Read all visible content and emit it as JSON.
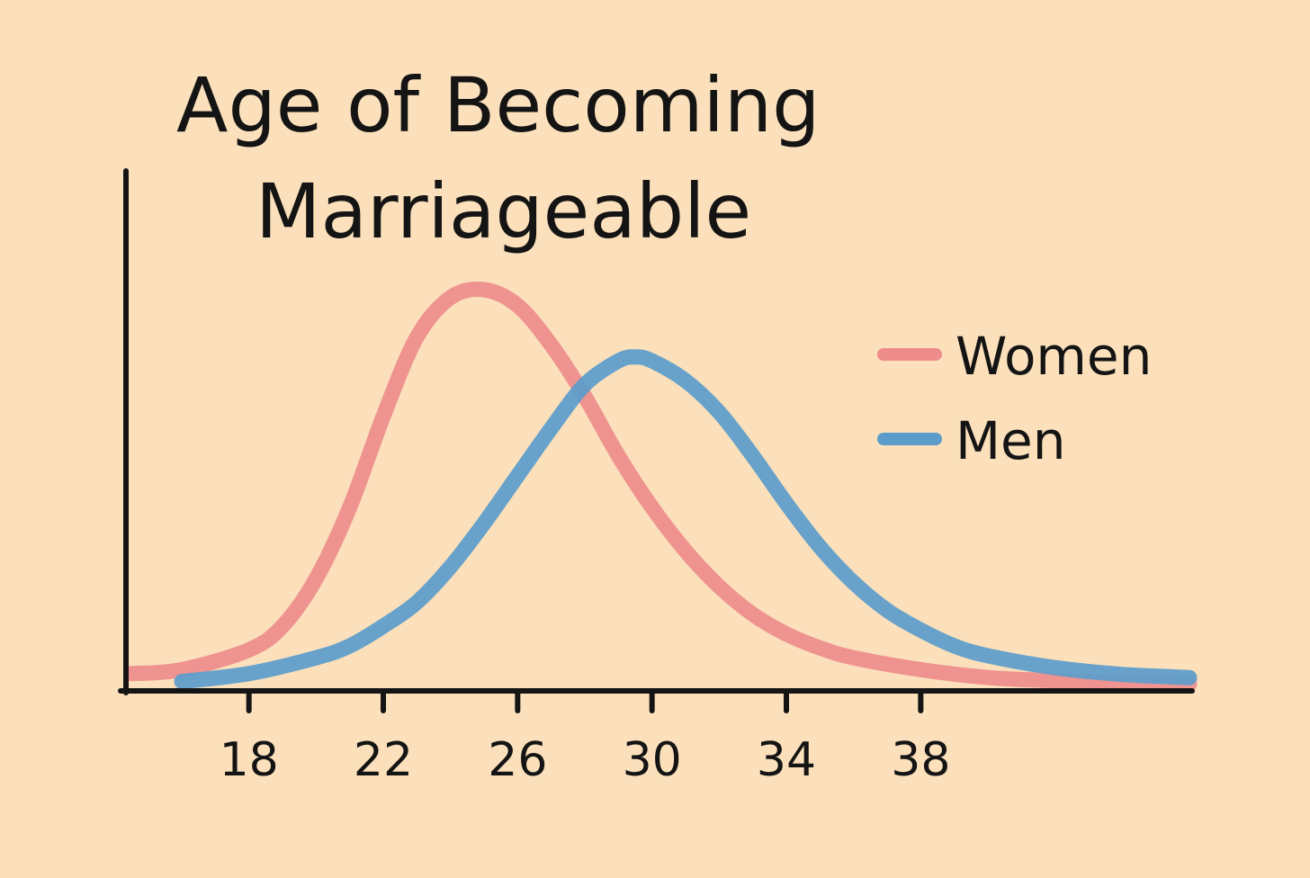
{
  "chart_data": {
    "type": "line",
    "title": [
      "Age of Becoming",
      "Marriageable"
    ],
    "xlabel": "",
    "ylabel": "",
    "xlim": [
      14.5,
      46
    ],
    "ylim": [
      0,
      1.0
    ],
    "x_ticks": [
      18,
      22,
      26,
      30,
      34,
      38
    ],
    "x_tick_labels": [
      "18",
      "22",
      "26",
      "30",
      "34",
      "38"
    ],
    "grid": false,
    "legend_placement": "right",
    "series": [
      {
        "name": "Women",
        "color": "#ee8c8c",
        "x": [
          14.5,
          16,
          18,
          19,
          20,
          21,
          22,
          23,
          24,
          25,
          26,
          27,
          28,
          29,
          30,
          31,
          32,
          33,
          34,
          35,
          36,
          38,
          40,
          42,
          44,
          46
        ],
        "y": [
          0.03,
          0.04,
          0.09,
          0.15,
          0.27,
          0.45,
          0.68,
          0.88,
          0.98,
          1.0,
          0.96,
          0.86,
          0.73,
          0.58,
          0.45,
          0.34,
          0.25,
          0.18,
          0.13,
          0.095,
          0.07,
          0.04,
          0.02,
          0.012,
          0.007,
          0.004
        ]
      },
      {
        "name": "Men",
        "color": "#5b9ccb",
        "x": [
          16,
          18,
          20,
          21,
          22,
          23,
          24,
          25,
          26,
          27,
          28,
          29,
          29.5,
          30,
          31,
          32,
          33,
          34,
          35,
          36,
          37,
          38,
          39,
          40,
          42,
          44,
          46
        ],
        "y": [
          0.01,
          0.03,
          0.07,
          0.1,
          0.15,
          0.21,
          0.3,
          0.41,
          0.53,
          0.65,
          0.76,
          0.82,
          0.83,
          0.82,
          0.77,
          0.69,
          0.58,
          0.46,
          0.35,
          0.26,
          0.19,
          0.14,
          0.1,
          0.075,
          0.045,
          0.028,
          0.02
        ]
      }
    ]
  }
}
